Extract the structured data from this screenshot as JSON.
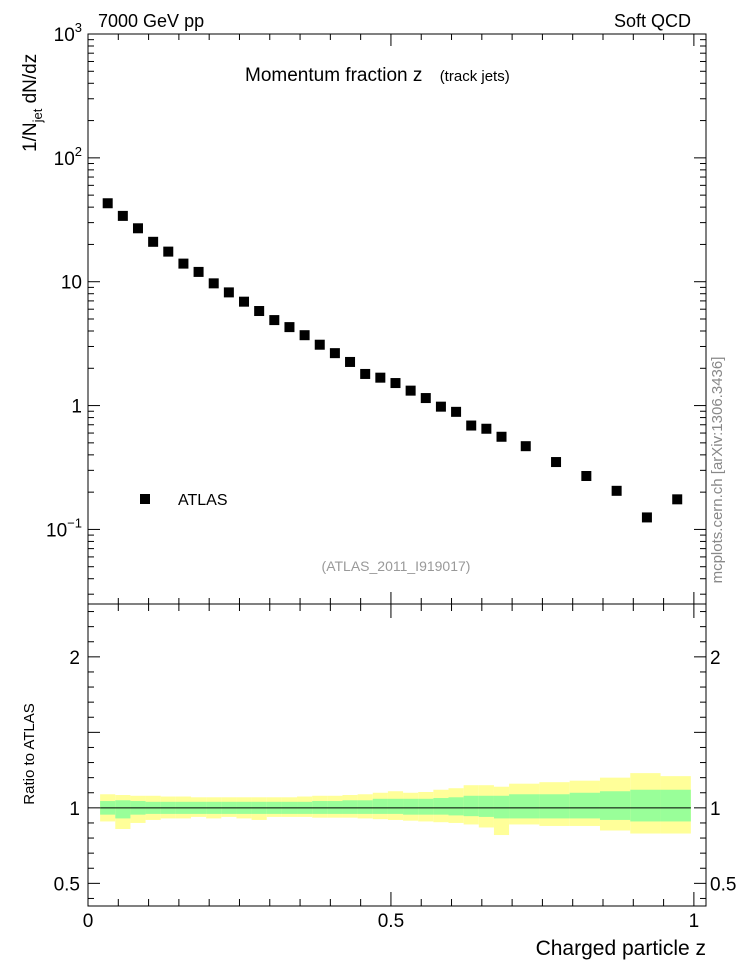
{
  "header": {
    "left": "7000 GeV pp",
    "right": "Soft QCD"
  },
  "side_label": "mcplots.cern.ch [arXiv:1306.3436]",
  "chart_data": [
    {
      "type": "scatter",
      "title": "Momentum fraction z",
      "subtitle": "(track jets)",
      "ylabel_parts": {
        "main": "1/N",
        "sub": "jet",
        "rest": " dN/dz"
      },
      "yscale": "log",
      "ylim": [
        0.025,
        1000
      ],
      "xlim": [
        0,
        1.02
      ],
      "y_ticks": [
        {
          "value": 0.1,
          "base": "10",
          "exp": "−1"
        },
        {
          "value": 1,
          "base": "1",
          "exp": ""
        },
        {
          "value": 10,
          "base": "10",
          "exp": ""
        },
        {
          "value": 100,
          "base": "10",
          "exp": "2"
        },
        {
          "value": 1000,
          "base": "10",
          "exp": "3"
        }
      ],
      "legend": {
        "position": "lower-left",
        "entries": [
          "ATLAS"
        ]
      },
      "watermark": "(ATLAS_2011_I919017)",
      "series": [
        {
          "name": "ATLAS",
          "marker": "square",
          "color": "#000000",
          "x": [
            0.0325,
            0.0575,
            0.0825,
            0.1075,
            0.1325,
            0.1575,
            0.1825,
            0.2075,
            0.2325,
            0.2575,
            0.2825,
            0.3075,
            0.3325,
            0.3575,
            0.3825,
            0.4075,
            0.4325,
            0.4575,
            0.4825,
            0.5075,
            0.5325,
            0.5575,
            0.5825,
            0.6075,
            0.6325,
            0.6575,
            0.6825,
            0.7225,
            0.7725,
            0.8225,
            0.8725,
            0.9225,
            0.9725
          ],
          "y": [
            43,
            34,
            27,
            21,
            17.5,
            14,
            12,
            9.7,
            8.2,
            6.9,
            5.8,
            4.9,
            4.3,
            3.7,
            3.1,
            2.65,
            2.25,
            1.8,
            1.68,
            1.52,
            1.32,
            1.15,
            0.98,
            0.89,
            0.69,
            0.65,
            0.56,
            0.47,
            0.35,
            0.27,
            0.205,
            0.125,
            0.175
          ]
        }
      ]
    },
    {
      "type": "area",
      "ylabel": "Ratio to ATLAS",
      "xlabel": "Charged particle z",
      "ylim": [
        0.35,
        2.35
      ],
      "x_ticks": [
        {
          "value": 0,
          "label": "0"
        },
        {
          "value": 0.5,
          "label": "0.5"
        },
        {
          "value": 1,
          "label": "1"
        }
      ],
      "y_ticks": [
        {
          "value": 0.5,
          "label": "0.5"
        },
        {
          "value": 1,
          "label": "1"
        },
        {
          "value": 2,
          "label": "2"
        }
      ],
      "colors": {
        "inner_band": "#99ff99",
        "outer_band": "#ffff99",
        "reference_line": "#000000"
      },
      "bins": [
        [
          0.02,
          0.045
        ],
        [
          0.045,
          0.07
        ],
        [
          0.07,
          0.095
        ],
        [
          0.095,
          0.12
        ],
        [
          0.12,
          0.145
        ],
        [
          0.145,
          0.17
        ],
        [
          0.17,
          0.195
        ],
        [
          0.195,
          0.22
        ],
        [
          0.22,
          0.245
        ],
        [
          0.245,
          0.27
        ],
        [
          0.27,
          0.295
        ],
        [
          0.295,
          0.32
        ],
        [
          0.32,
          0.345
        ],
        [
          0.345,
          0.37
        ],
        [
          0.37,
          0.395
        ],
        [
          0.395,
          0.42
        ],
        [
          0.42,
          0.445
        ],
        [
          0.445,
          0.47
        ],
        [
          0.47,
          0.495
        ],
        [
          0.495,
          0.52
        ],
        [
          0.52,
          0.545
        ],
        [
          0.545,
          0.57
        ],
        [
          0.57,
          0.595
        ],
        [
          0.595,
          0.62
        ],
        [
          0.62,
          0.645
        ],
        [
          0.645,
          0.67
        ],
        [
          0.67,
          0.695
        ],
        [
          0.695,
          0.745
        ],
        [
          0.745,
          0.795
        ],
        [
          0.795,
          0.845
        ],
        [
          0.845,
          0.895
        ],
        [
          0.895,
          0.945
        ],
        [
          0.945,
          0.995
        ]
      ],
      "inner_band": [
        [
          0.955,
          1.045
        ],
        [
          0.93,
          1.05
        ],
        [
          0.955,
          1.045
        ],
        [
          0.96,
          1.04
        ],
        [
          0.96,
          1.04
        ],
        [
          0.96,
          1.04
        ],
        [
          0.96,
          1.04
        ],
        [
          0.96,
          1.04
        ],
        [
          0.96,
          1.04
        ],
        [
          0.96,
          1.04
        ],
        [
          0.96,
          1.04
        ],
        [
          0.96,
          1.04
        ],
        [
          0.96,
          1.04
        ],
        [
          0.96,
          1.04
        ],
        [
          0.96,
          1.045
        ],
        [
          0.96,
          1.045
        ],
        [
          0.96,
          1.05
        ],
        [
          0.96,
          1.05
        ],
        [
          0.96,
          1.06
        ],
        [
          0.96,
          1.06
        ],
        [
          0.955,
          1.06
        ],
        [
          0.955,
          1.06
        ],
        [
          0.955,
          1.065
        ],
        [
          0.95,
          1.07
        ],
        [
          0.945,
          1.08
        ],
        [
          0.94,
          1.08
        ],
        [
          0.93,
          1.08
        ],
        [
          0.93,
          1.09
        ],
        [
          0.93,
          1.09
        ],
        [
          0.93,
          1.1
        ],
        [
          0.92,
          1.11
        ],
        [
          0.91,
          1.12
        ],
        [
          0.91,
          1.12
        ]
      ],
      "outer_band": [
        [
          0.91,
          1.09
        ],
        [
          0.86,
          1.085
        ],
        [
          0.9,
          1.08
        ],
        [
          0.92,
          1.08
        ],
        [
          0.93,
          1.075
        ],
        [
          0.93,
          1.075
        ],
        [
          0.94,
          1.07
        ],
        [
          0.93,
          1.07
        ],
        [
          0.94,
          1.07
        ],
        [
          0.93,
          1.07
        ],
        [
          0.92,
          1.07
        ],
        [
          0.94,
          1.07
        ],
        [
          0.94,
          1.07
        ],
        [
          0.94,
          1.075
        ],
        [
          0.935,
          1.08
        ],
        [
          0.935,
          1.08
        ],
        [
          0.935,
          1.085
        ],
        [
          0.93,
          1.09
        ],
        [
          0.925,
          1.1
        ],
        [
          0.92,
          1.11
        ],
        [
          0.915,
          1.1
        ],
        [
          0.91,
          1.105
        ],
        [
          0.905,
          1.12
        ],
        [
          0.9,
          1.13
        ],
        [
          0.89,
          1.15
        ],
        [
          0.87,
          1.15
        ],
        [
          0.82,
          1.14
        ],
        [
          0.89,
          1.16
        ],
        [
          0.88,
          1.17
        ],
        [
          0.88,
          1.18
        ],
        [
          0.85,
          1.2
        ],
        [
          0.83,
          1.23
        ],
        [
          0.83,
          1.21
        ]
      ]
    }
  ]
}
